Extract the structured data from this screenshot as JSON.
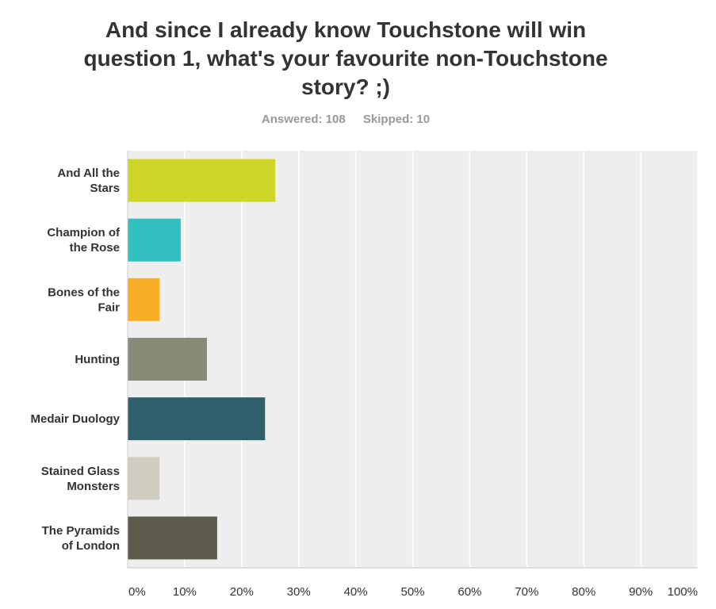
{
  "chart_data": {
    "type": "bar",
    "orientation": "horizontal",
    "title": "And since I already know Touchstone will win question 1, what's your favourite non-Touchstone story? ;)",
    "stats": {
      "answered": "Answered: 108",
      "skipped": "Skipped: 10"
    },
    "categories": [
      [
        "And All the",
        "Stars"
      ],
      [
        "Champion of",
        "the Rose"
      ],
      [
        "Bones of the",
        "Fair"
      ],
      [
        "Hunting"
      ],
      [
        "Medair Duology"
      ],
      [
        "Stained Glass",
        "Monsters"
      ],
      [
        "The Pyramids",
        "of London"
      ]
    ],
    "values": [
      25.9,
      9.3,
      5.6,
      13.9,
      24.1,
      5.6,
      15.7
    ],
    "colors": [
      "#cdd629",
      "#32bfbf",
      "#f7ae25",
      "#898a78",
      "#2e5f6b",
      "#cfcdbf",
      "#5c5b4c"
    ],
    "xlim": [
      0,
      100
    ],
    "x_ticks": [
      0,
      10,
      20,
      30,
      40,
      50,
      60,
      70,
      80,
      90,
      100
    ],
    "x_tick_labels": [
      "0%",
      "10%",
      "20%",
      "30%",
      "40%",
      "50%",
      "60%",
      "70%",
      "80%",
      "90%",
      "100%"
    ],
    "grid": true,
    "plot_background": "#eeeeee",
    "grid_color": "#ffffff"
  }
}
